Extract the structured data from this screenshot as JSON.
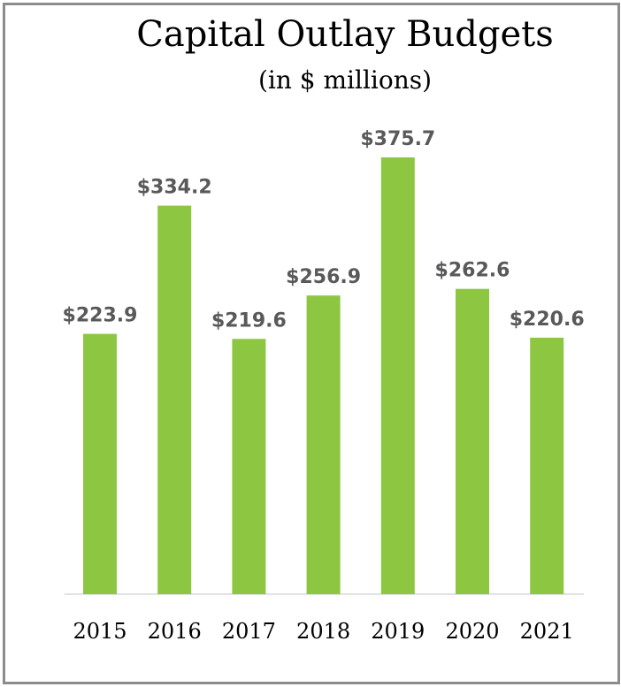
{
  "chart_data": {
    "type": "bar",
    "title": "Capital Outlay Budgets",
    "subtitle": "(in $ millions)",
    "categories": [
      "2015",
      "2016",
      "2017",
      "2018",
      "2019",
      "2020",
      "2021"
    ],
    "values": [
      223.9,
      334.2,
      219.6,
      256.9,
      375.7,
      262.6,
      220.6
    ],
    "data_labels": [
      "$223.9",
      "$334.2",
      "$219.6",
      "$256.9",
      "$375.7",
      "$262.6",
      "$220.6"
    ],
    "xlabel": "",
    "ylabel": "",
    "ylim": [
      0,
      375.7
    ],
    "grid": false,
    "legend": "none",
    "bar_color": "#8dc641",
    "axis_color": "#d9d9d9",
    "data_label_color": "#595959"
  }
}
